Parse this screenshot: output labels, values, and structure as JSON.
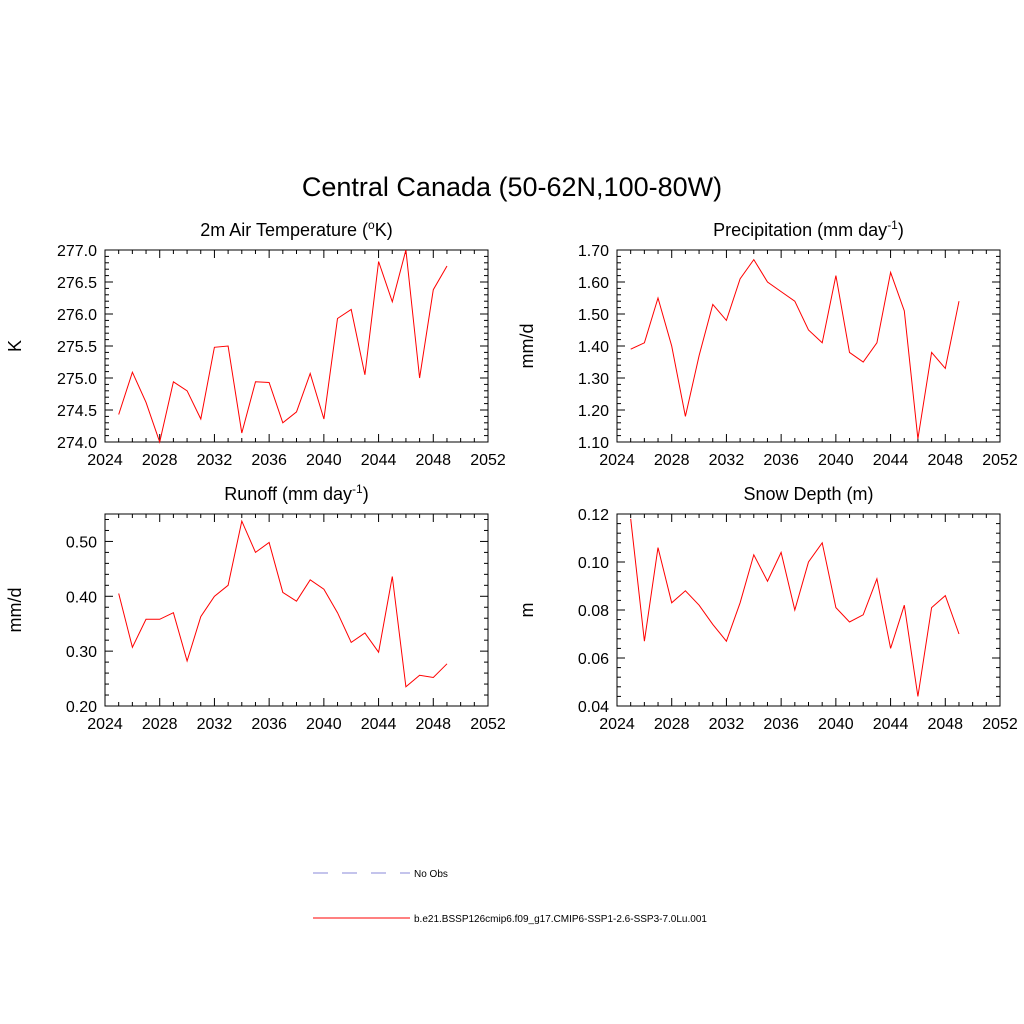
{
  "figure": {
    "title": "Central Canada (50-62N,100-80W)",
    "background": "#ffffff",
    "line_color": "#ff0000",
    "obs_color": "#a0a0e0"
  },
  "legend": {
    "entries": [
      {
        "label": "No Obs",
        "style": "dashed",
        "color": "#a0a0e0"
      },
      {
        "label": "b.e21.BSSP126cmip6.f09_g17.CMIP6-SSP1-2.6-SSP3-7.0Lu.001",
        "style": "solid",
        "color": "#ff0000"
      }
    ]
  },
  "chart_data": [
    {
      "type": "line",
      "title": "2m Air Temperature (",
      "title_sup": "o",
      "title_suffix": "K)",
      "ylabel": "K",
      "xlim": [
        2024,
        2052
      ],
      "ylim": [
        274.0,
        277.0
      ],
      "xticks": [
        2024,
        2028,
        2032,
        2036,
        2040,
        2044,
        2048,
        2052
      ],
      "yticks": [
        "274.0",
        "274.5",
        "275.0",
        "275.5",
        "276.0",
        "276.5",
        "277.0"
      ],
      "grid": false,
      "series": [
        {
          "color": "#ff0000",
          "x": [
            2025,
            2026,
            2027,
            2028,
            2029,
            2030,
            2031,
            2032,
            2033,
            2034,
            2035,
            2036,
            2037,
            2038,
            2039,
            2040,
            2041,
            2042,
            2043,
            2044,
            2045,
            2046,
            2047,
            2048,
            2049
          ],
          "y": [
            274.43,
            275.09,
            274.62,
            274.0,
            274.94,
            274.8,
            274.36,
            275.48,
            275.5,
            274.14,
            274.94,
            274.93,
            274.3,
            274.47,
            275.07,
            274.36,
            275.93,
            276.07,
            275.05,
            276.82,
            276.19,
            277.0,
            275.0,
            276.38,
            276.75
          ]
        }
      ]
    },
    {
      "type": "line",
      "title": "Precipitation (mm day",
      "title_sup": "-1",
      "title_suffix": ")",
      "ylabel": "mm/d",
      "xlim": [
        2024,
        2052
      ],
      "ylim": [
        1.1,
        1.7
      ],
      "xticks": [
        2024,
        2028,
        2032,
        2036,
        2040,
        2044,
        2048,
        2052
      ],
      "yticks": [
        "1.10",
        "1.20",
        "1.30",
        "1.40",
        "1.50",
        "1.60",
        "1.70"
      ],
      "grid": false,
      "series": [
        {
          "color": "#ff0000",
          "x": [
            2025,
            2026,
            2027,
            2028,
            2029,
            2030,
            2031,
            2032,
            2033,
            2034,
            2035,
            2036,
            2037,
            2038,
            2039,
            2040,
            2041,
            2042,
            2043,
            2044,
            2045,
            2046,
            2047,
            2048,
            2049
          ],
          "y": [
            1.39,
            1.41,
            1.55,
            1.4,
            1.18,
            1.37,
            1.53,
            1.48,
            1.61,
            1.67,
            1.6,
            1.57,
            1.54,
            1.45,
            1.41,
            1.62,
            1.38,
            1.35,
            1.41,
            1.63,
            1.51,
            1.11,
            1.38,
            1.33,
            1.54
          ]
        }
      ]
    },
    {
      "type": "line",
      "title": "Runoff (mm day",
      "title_sup": "-1",
      "title_suffix": ")",
      "ylabel": "mm/d",
      "xlim": [
        2024,
        2052
      ],
      "ylim": [
        0.2,
        0.55
      ],
      "xticks": [
        2024,
        2028,
        2032,
        2036,
        2040,
        2044,
        2048,
        2052
      ],
      "yticks": [
        "0.20",
        "0.30",
        "0.40",
        "0.50"
      ],
      "grid": false,
      "series": [
        {
          "color": "#ff0000",
          "x": [
            2025,
            2026,
            2027,
            2028,
            2029,
            2030,
            2031,
            2032,
            2033,
            2034,
            2035,
            2036,
            2037,
            2038,
            2039,
            2040,
            2041,
            2042,
            2043,
            2044,
            2045,
            2046,
            2047,
            2048,
            2049
          ],
          "y": [
            0.405,
            0.307,
            0.358,
            0.358,
            0.37,
            0.282,
            0.363,
            0.4,
            0.42,
            0.537,
            0.48,
            0.498,
            0.407,
            0.391,
            0.43,
            0.413,
            0.37,
            0.316,
            0.333,
            0.298,
            0.436,
            0.235,
            0.256,
            0.252,
            0.277
          ]
        }
      ]
    },
    {
      "type": "line",
      "title": "Snow Depth (m)",
      "title_sup": "",
      "title_suffix": "",
      "ylabel": "m",
      "xlim": [
        2024,
        2052
      ],
      "ylim": [
        0.04,
        0.12
      ],
      "xticks": [
        2024,
        2028,
        2032,
        2036,
        2040,
        2044,
        2048,
        2052
      ],
      "yticks": [
        "0.04",
        "0.06",
        "0.08",
        "0.10",
        "0.12"
      ],
      "grid": false,
      "series": [
        {
          "color": "#ff0000",
          "x": [
            2025,
            2026,
            2027,
            2028,
            2029,
            2030,
            2031,
            2032,
            2033,
            2034,
            2035,
            2036,
            2037,
            2038,
            2039,
            2040,
            2041,
            2042,
            2043,
            2044,
            2045,
            2046,
            2047,
            2048,
            2049
          ],
          "y": [
            0.118,
            0.067,
            0.106,
            0.083,
            0.088,
            0.082,
            0.074,
            0.067,
            0.083,
            0.103,
            0.092,
            0.104,
            0.08,
            0.1,
            0.108,
            0.081,
            0.075,
            0.078,
            0.093,
            0.064,
            0.082,
            0.044,
            0.081,
            0.086,
            0.07
          ]
        }
      ]
    }
  ]
}
